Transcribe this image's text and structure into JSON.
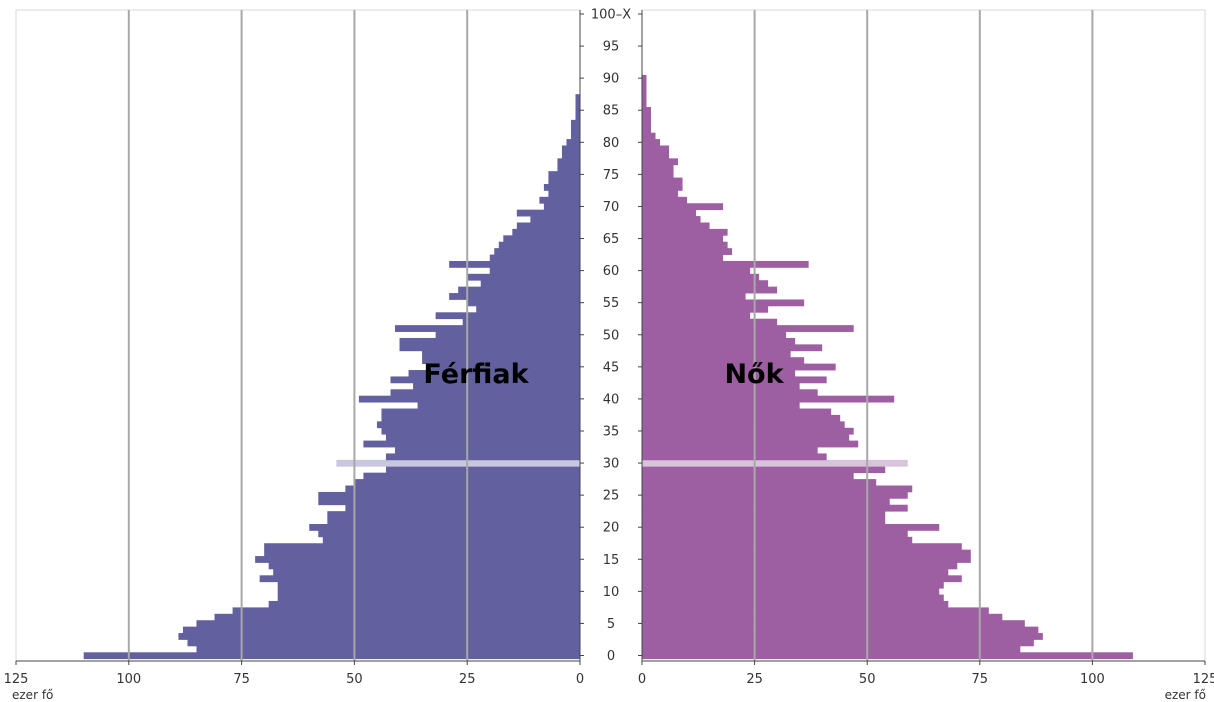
{
  "chart_data": {
    "type": "bar",
    "orientation": "horizontal",
    "xlim": [
      0,
      125
    ],
    "x_ticks": [
      "125",
      "100",
      "75",
      "50",
      "25",
      "0"
    ],
    "x_ticks_right": [
      "0",
      "25",
      "50",
      "75",
      "100",
      "125"
    ],
    "x_unit": "ezer fő",
    "age_ticks": [
      "0",
      "5",
      "10",
      "15",
      "20",
      "25",
      "30",
      "35",
      "40",
      "45",
      "50",
      "55",
      "60",
      "65",
      "70",
      "75",
      "80",
      "85",
      "90",
      "95",
      "100–X"
    ],
    "grid": true,
    "highlight_age": 30,
    "series": [
      {
        "name": "Férfiak",
        "color": "#63609f",
        "highlight_color": "#c9c7e0",
        "values": [
          110,
          85,
          87,
          89,
          88,
          85,
          81,
          77,
          69,
          67,
          67,
          67,
          71,
          68,
          69,
          72,
          70,
          70,
          57,
          58,
          60,
          56,
          56,
          52,
          58,
          58,
          52,
          50,
          48,
          43,
          54,
          43,
          41,
          48,
          43,
          44,
          45,
          44,
          44,
          36,
          49,
          42,
          37,
          42,
          38,
          33,
          35,
          35,
          40,
          40,
          32,
          41,
          26,
          32,
          23,
          25,
          29,
          27,
          22,
          25,
          20,
          29,
          20,
          19,
          18,
          17,
          15,
          14,
          11,
          14,
          8,
          9,
          7,
          8,
          7,
          7,
          5,
          5,
          4,
          4,
          3,
          2,
          2,
          2,
          1,
          1,
          1,
          1,
          0,
          0,
          0,
          0,
          0,
          0,
          0,
          0,
          0,
          0,
          0,
          0,
          0
        ]
      },
      {
        "name": "Nők",
        "color": "#9d5fa2",
        "highlight_color": "#d9c3dc",
        "values": [
          109,
          84,
          87,
          89,
          88,
          85,
          80,
          77,
          68,
          67,
          66,
          67,
          71,
          68,
          70,
          73,
          73,
          71,
          60,
          59,
          66,
          54,
          54,
          59,
          55,
          59,
          60,
          52,
          47,
          54,
          59,
          41,
          39,
          48,
          46,
          47,
          45,
          44,
          42,
          35,
          56,
          39,
          35,
          41,
          34,
          43,
          36,
          33,
          40,
          34,
          32,
          47,
          30,
          24,
          28,
          36,
          23,
          30,
          28,
          26,
          24,
          37,
          18,
          20,
          19,
          18,
          19,
          15,
          13,
          12,
          18,
          10,
          8,
          9,
          9,
          7,
          7,
          8,
          6,
          6,
          4,
          3,
          2,
          2,
          2,
          2,
          1,
          1,
          1,
          1,
          1,
          0,
          0,
          0,
          0,
          0,
          0,
          0,
          0,
          0,
          0
        ]
      }
    ]
  }
}
